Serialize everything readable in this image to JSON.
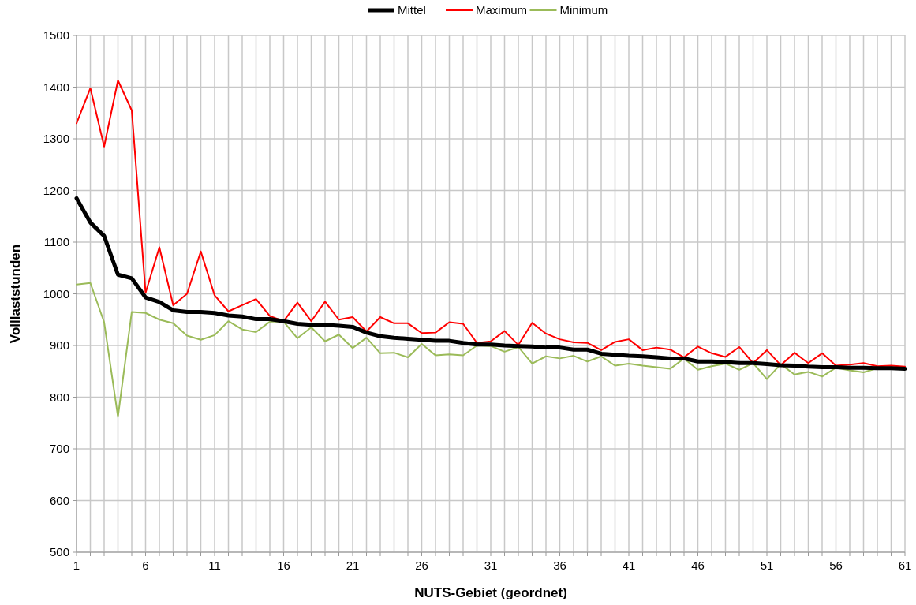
{
  "chart_data": {
    "type": "line",
    "xlabel": "NUTS-Gebiet (geordnet)",
    "ylabel": "Volllaststunden",
    "x": [
      1,
      2,
      3,
      4,
      5,
      6,
      7,
      8,
      9,
      10,
      11,
      12,
      13,
      14,
      15,
      16,
      17,
      18,
      19,
      20,
      21,
      22,
      23,
      24,
      25,
      26,
      27,
      28,
      29,
      30,
      31,
      32,
      33,
      34,
      35,
      36,
      37,
      38,
      39,
      40,
      41,
      42,
      43,
      44,
      45,
      46,
      47,
      48,
      49,
      50,
      51,
      52,
      53,
      54,
      55,
      56,
      57,
      58,
      59,
      60,
      61
    ],
    "xlim": [
      1,
      61
    ],
    "xticks": [
      1,
      {
        "value": 2,
        "label": null
      },
      {
        "value": 3,
        "label": null
      },
      {
        "value": 4,
        "label": null
      },
      {
        "value": 5,
        "label": null
      },
      6,
      {
        "value": 7,
        "label": null
      },
      {
        "value": 8,
        "label": null
      },
      {
        "value": 9,
        "label": null
      },
      {
        "value": 10,
        "label": null
      },
      11,
      {
        "value": 12,
        "label": null
      },
      {
        "value": 13,
        "label": null
      },
      {
        "value": 14,
        "label": null
      },
      {
        "value": 15,
        "label": null
      },
      16,
      {
        "value": 17,
        "label": null
      },
      {
        "value": 18,
        "label": null
      },
      {
        "value": 19,
        "label": null
      },
      {
        "value": 20,
        "label": null
      },
      21,
      {
        "value": 22,
        "label": null
      },
      {
        "value": 23,
        "label": null
      },
      {
        "value": 24,
        "label": null
      },
      {
        "value": 25,
        "label": null
      },
      26,
      {
        "value": 27,
        "label": null
      },
      {
        "value": 28,
        "label": null
      },
      {
        "value": 29,
        "label": null
      },
      {
        "value": 30,
        "label": null
      },
      31,
      {
        "value": 32,
        "label": null
      },
      {
        "value": 33,
        "label": null
      },
      {
        "value": 34,
        "label": null
      },
      {
        "value": 35,
        "label": null
      },
      36,
      {
        "value": 37,
        "label": null
      },
      {
        "value": 38,
        "label": null
      },
      {
        "value": 39,
        "label": null
      },
      {
        "value": 40,
        "label": null
      },
      41,
      {
        "value": 42,
        "label": null
      },
      {
        "value": 43,
        "label": null
      },
      {
        "value": 44,
        "label": null
      },
      {
        "value": 45,
        "label": null
      },
      46,
      {
        "value": 47,
        "label": null
      },
      {
        "value": 48,
        "label": null
      },
      {
        "value": 49,
        "label": null
      },
      {
        "value": 50,
        "label": null
      },
      51,
      {
        "value": 52,
        "label": null
      },
      {
        "value": 53,
        "label": null
      },
      {
        "value": 54,
        "label": null
      },
      {
        "value": 55,
        "label": null
      },
      56,
      {
        "value": 57,
        "label": null
      },
      {
        "value": 58,
        "label": null
      },
      {
        "value": 59,
        "label": null
      },
      {
        "value": 60,
        "label": null
      },
      61
    ],
    "ylim": [
      500,
      1500
    ],
    "yticks": [
      500,
      600,
      700,
      800,
      900,
      1000,
      1100,
      1200,
      1300,
      1400,
      1500
    ],
    "grid": true,
    "legend": "top",
    "marker": "none",
    "line_style": "solid",
    "series": [
      {
        "name": "Mittel",
        "color": "#000000",
        "values": [
          1185,
          1138,
          1112,
          1037,
          1030,
          993,
          984,
          968,
          965,
          965,
          963,
          958,
          956,
          951,
          951,
          947,
          942,
          940,
          940,
          938,
          936,
          925,
          918,
          915,
          913,
          911,
          909,
          909,
          905,
          902,
          902,
          900,
          899,
          898,
          896,
          896,
          892,
          892,
          884,
          882,
          880,
          879,
          877,
          875,
          875,
          869,
          869,
          868,
          866,
          866,
          864,
          862,
          861,
          859,
          858,
          858,
          857,
          857,
          856,
          856,
          855
        ]
      },
      {
        "name": "Maximum",
        "color": "#ff0000",
        "values": [
          1330,
          1398,
          1285,
          1413,
          1355,
          1002,
          1090,
          978,
          1000,
          1082,
          997,
          966,
          978,
          990,
          957,
          947,
          983,
          947,
          985,
          950,
          955,
          927,
          955,
          943,
          943,
          924,
          925,
          945,
          942,
          905,
          908,
          928,
          901,
          944,
          923,
          912,
          906,
          905,
          891,
          907,
          912,
          891,
          896,
          892,
          877,
          898,
          885,
          878,
          897,
          866,
          891,
          862,
          886,
          866,
          885,
          861,
          863,
          866,
          860,
          861,
          859
        ]
      },
      {
        "name": "Minimum",
        "color": "#9bbb59",
        "values": [
          1018,
          1021,
          945,
          762,
          965,
          963,
          950,
          943,
          919,
          911,
          920,
          947,
          931,
          926,
          946,
          946,
          914,
          935,
          908,
          921,
          895,
          915,
          885,
          886,
          877,
          903,
          881,
          883,
          881,
          900,
          899,
          888,
          897,
          865,
          879,
          875,
          880,
          869,
          879,
          861,
          865,
          861,
          858,
          855,
          875,
          853,
          860,
          865,
          853,
          866,
          835,
          864,
          844,
          849,
          840,
          857,
          852,
          848,
          856,
          855,
          855
        ]
      }
    ]
  }
}
